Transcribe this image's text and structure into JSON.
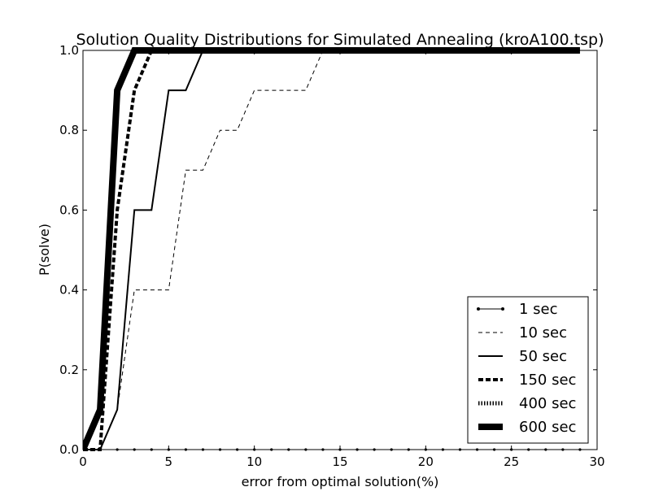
{
  "chart_data": {
    "type": "line",
    "title": "Solution Quality Distributions for Simulated Annealing (kroA100.tsp)",
    "xlabel": "error from optimal solution(%)",
    "ylabel": "P(solve)",
    "xlim": [
      0,
      30
    ],
    "ylim": [
      0,
      1.0
    ],
    "xticks": [
      0,
      5,
      10,
      15,
      20,
      25,
      30
    ],
    "xtick_labels": [
      "0",
      "5",
      "10",
      "15",
      "20",
      "25",
      "30"
    ],
    "yticks": [
      0,
      0.2,
      0.4,
      0.6,
      0.8,
      1.0
    ],
    "ytick_labels": [
      "0.0",
      "0.2",
      "0.4",
      "0.6",
      "0.8",
      "1.0"
    ],
    "grid": false,
    "legend_position": "lower-right",
    "series": [
      {
        "name": "1 sec",
        "style": "solid-dot",
        "x": [
          0,
          1,
          2,
          3,
          4,
          5,
          6,
          7,
          8,
          9,
          10,
          11,
          12,
          13,
          14,
          15,
          16,
          17,
          18,
          19,
          20,
          21,
          22,
          23,
          24,
          25,
          26,
          27,
          28,
          29
        ],
        "y": [
          0,
          0,
          0,
          0,
          0,
          0,
          0,
          0,
          0,
          0,
          0,
          0,
          0,
          0,
          0,
          0,
          0,
          0,
          0,
          0,
          0,
          0,
          0,
          0,
          0,
          0,
          0,
          0,
          0,
          0
        ]
      },
      {
        "name": "10 sec",
        "style": "dashed-thin",
        "x": [
          0,
          1,
          2,
          3,
          4,
          5,
          6,
          7,
          8,
          9,
          10,
          11,
          12,
          13,
          14,
          15,
          29
        ],
        "y": [
          0,
          0,
          0.1,
          0.4,
          0.4,
          0.4,
          0.7,
          0.7,
          0.8,
          0.8,
          0.9,
          0.9,
          0.9,
          0.9,
          1.0,
          1.0,
          1.0
        ]
      },
      {
        "name": "50 sec",
        "style": "solid-medium",
        "x": [
          0,
          1,
          2,
          3,
          4,
          5,
          6,
          7,
          29
        ],
        "y": [
          0,
          0,
          0.1,
          0.6,
          0.6,
          0.9,
          0.9,
          1.0,
          1.0
        ]
      },
      {
        "name": "150 sec",
        "style": "dashed-thick",
        "x": [
          0,
          1,
          2,
          3,
          4
        ],
        "y": [
          0,
          0,
          0.6,
          0.9,
          1.0
        ]
      },
      {
        "name": "400 sec",
        "style": "dotted",
        "x": [
          0,
          1,
          2,
          3
        ],
        "y": [
          0,
          0.1,
          0.9,
          1.0
        ]
      },
      {
        "name": "600 sec",
        "style": "solid-heavy",
        "x": [
          0,
          1,
          2,
          3,
          29
        ],
        "y": [
          0,
          0.1,
          0.9,
          1.0,
          1.0
        ]
      }
    ]
  }
}
